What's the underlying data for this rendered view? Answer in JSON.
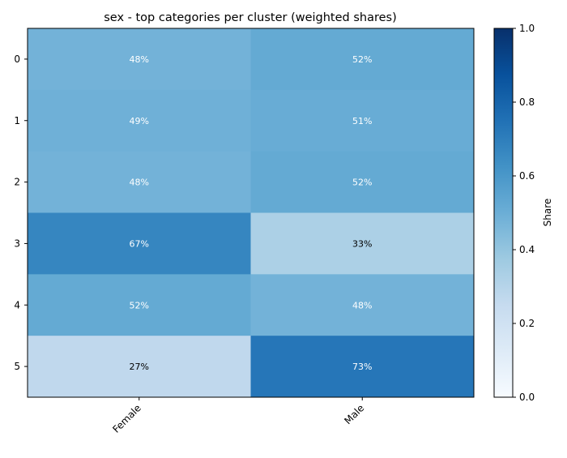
{
  "chart_data": {
    "type": "heatmap",
    "title": "sex - top categories per cluster (weighted shares)",
    "xlabel": "",
    "ylabel": "",
    "columns": [
      "Female",
      "Male"
    ],
    "rows": [
      "0",
      "1",
      "2",
      "3",
      "4",
      "5"
    ],
    "values": [
      [
        0.48,
        0.52
      ],
      [
        0.49,
        0.51
      ],
      [
        0.48,
        0.52
      ],
      [
        0.67,
        0.33
      ],
      [
        0.52,
        0.48
      ],
      [
        0.27,
        0.73
      ]
    ],
    "cell_labels": [
      [
        "48%",
        "52%"
      ],
      [
        "49%",
        "51%"
      ],
      [
        "48%",
        "52%"
      ],
      [
        "67%",
        "33%"
      ],
      [
        "52%",
        "48%"
      ],
      [
        "27%",
        "73%"
      ]
    ],
    "colormap": "Blues",
    "vmin": 0.0,
    "vmax": 1.0,
    "colorbar": {
      "label": "Share",
      "ticks": [
        "0.0",
        "0.2",
        "0.4",
        "0.6",
        "0.8",
        "1.0"
      ],
      "tick_values": [
        0.0,
        0.2,
        0.4,
        0.6,
        0.8,
        1.0
      ]
    }
  }
}
